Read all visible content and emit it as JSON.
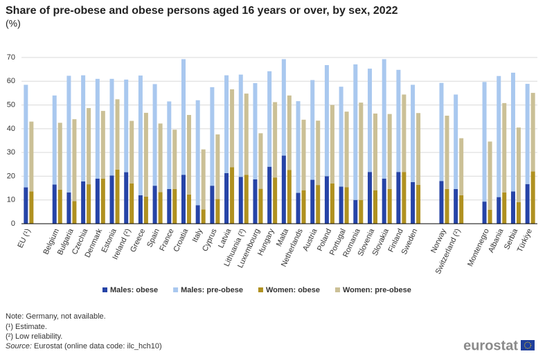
{
  "chart_data": {
    "type": "bar",
    "title": "Share of pre-obese and obese persons aged 16 years or over, by sex, 2022",
    "subtitle": "(%)",
    "categories": [
      "EU (¹)",
      null,
      "Belgium",
      "Bulgaria",
      "Czechia",
      "Denmark",
      "Estonia",
      "Ireland (²)",
      "Greece",
      "Spain",
      "France",
      "Croatia",
      "Italy",
      "Cyprus",
      "Latvia",
      "Lithuania (²)",
      "Luxembourg",
      "Hungary",
      "Malta",
      "Netherlands",
      "Austria",
      "Poland",
      "Portugal",
      "Romania",
      "Slovenia",
      "Slovakia",
      "Finland",
      "Sweden",
      null,
      "Norway",
      "Switzerland (²)",
      null,
      "Montenegro",
      "Albania",
      "Serbia",
      "Türkiye"
    ],
    "series": [
      {
        "name": "Males: obese",
        "color": "#2644a7",
        "values": [
          15.3,
          null,
          16.5,
          13.2,
          17.8,
          19,
          20.3,
          21.7,
          12,
          16,
          14.6,
          20.6,
          7.8,
          16,
          21.3,
          19.7,
          18.7,
          24,
          28.7,
          13,
          18.5,
          20,
          15.6,
          10,
          21.8,
          19,
          21.8,
          17.5,
          null,
          18,
          14.6,
          null,
          9.3,
          11.2,
          13.6,
          16.7
        ]
      },
      {
        "name": "Males: pre-obese",
        "color": "#a9c8ef",
        "values": [
          43.2,
          null,
          37.5,
          49.1,
          44.7,
          42,
          40.7,
          39,
          50.4,
          42.8,
          36.9,
          48.7,
          44.2,
          41.5,
          41.2,
          43.1,
          40.5,
          40.2,
          40.6,
          38.6,
          42,
          46.8,
          42.1,
          57.1,
          43.5,
          50.3,
          43,
          41,
          null,
          41.3,
          39.8,
          null,
          50.4,
          51,
          50,
          42.2
        ]
      },
      {
        "name": "Women: obese",
        "color": "#b09120",
        "values": [
          13.6,
          null,
          14.3,
          9.5,
          16.6,
          19,
          22.8,
          17,
          11.4,
          13.3,
          14.6,
          12.3,
          6,
          10.4,
          23.8,
          20.6,
          14.7,
          19.4,
          22.6,
          14.1,
          16.3,
          17,
          15.4,
          10,
          14.1,
          14.6,
          21.8,
          16.4,
          null,
          14.6,
          12,
          null,
          5.9,
          13.2,
          9.1,
          22
        ]
      },
      {
        "name": "Women: pre-obese",
        "color": "#cbc096",
        "values": [
          29.4,
          null,
          28.2,
          34.5,
          32.1,
          28.5,
          29.6,
          26.3,
          35.3,
          28.9,
          25,
          33.5,
          25.3,
          27.2,
          32.8,
          34.2,
          23.4,
          31.8,
          31.4,
          29.7,
          27.1,
          33,
          31.8,
          41,
          32.3,
          31.6,
          32.6,
          30.2,
          null,
          30.9,
          24,
          null,
          28.7,
          37.6,
          31.4,
          33.1
        ]
      }
    ],
    "ylim": [
      0,
      70
    ],
    "yticks": [
      0,
      10,
      20,
      30,
      40,
      50,
      60,
      70
    ],
    "grid": true,
    "notes": [
      "Note: Germany, not available.",
      "(¹) Estimate.",
      "(²) Low reliability."
    ],
    "source_label": "Source:",
    "source": " Eurostat (online data code: ilc_hch10)",
    "logo": "eurostat"
  }
}
